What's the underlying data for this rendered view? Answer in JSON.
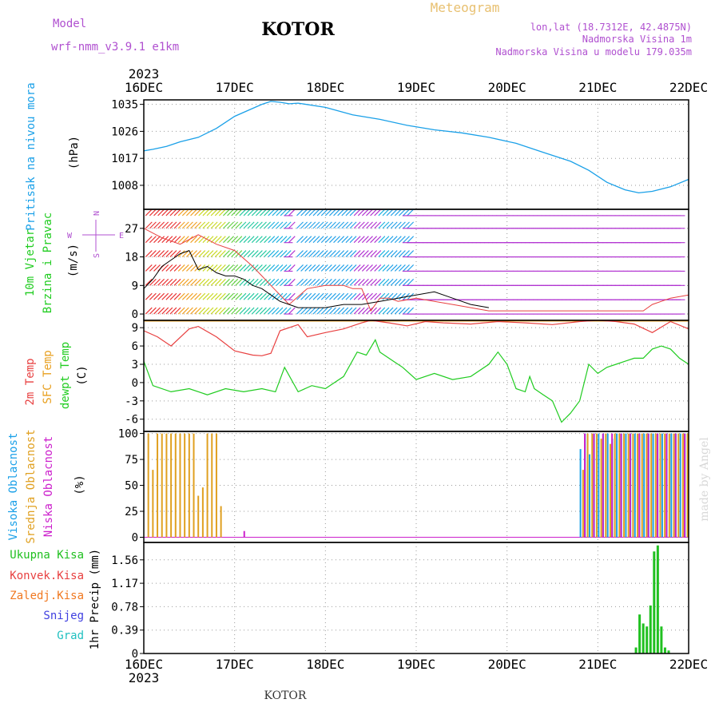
{
  "header": {
    "model_label": "Model",
    "model_name": "wrf-nmm_v3.9.1  e1km",
    "city": "KOTOR",
    "meteogram": "Meteogram",
    "lonlat": "lon,lat (18.7312E, 42.4875N)",
    "elev": "Nadmorska Visina 1m",
    "elev_model": "Nadmorska Visina u modelu 179.035m",
    "footer_city": "KOTOR",
    "watermark": "made by Angel"
  },
  "colors": {
    "pressure": "#1aa0e8",
    "temp": "#e84040",
    "sfc_temp": "#e8a020",
    "dewpt": "#20cc20",
    "high_cloud": "#1aa0e8",
    "mid_cloud": "#e0a020",
    "low_cloud": "#cc20cc",
    "precip_total": "#20c020",
    "precip_conv": "#e84040",
    "precip_frozen": "#f07820",
    "snow": "#4040e0",
    "grad": "#20c0c0",
    "wind_axis_label": "#b050d0"
  },
  "chart_data": [
    {
      "type": "line",
      "panel": "pressure",
      "ylabel_lines": [
        "Pritisak na nivou mora",
        "(hPa)"
      ],
      "ylim": [
        1000,
        1036.5
      ],
      "yticks": [
        1008,
        1017,
        1026,
        1035
      ],
      "x_start_year": "2023",
      "x_ticks": [
        "16DEC",
        "17DEC",
        "18DEC",
        "19DEC",
        "20DEC",
        "21DEC",
        "22DEC"
      ],
      "x_days": [
        0,
        6
      ],
      "grid": true,
      "series": [
        {
          "key": "pressure",
          "x": [
            0,
            0.1,
            0.25,
            0.4,
            0.6,
            0.8,
            1.0,
            1.15,
            1.3,
            1.4,
            1.5,
            1.6,
            1.7,
            2.0,
            2.3,
            2.6,
            2.9,
            3.2,
            3.5,
            3.8,
            4.1,
            4.4,
            4.7,
            4.9,
            5.1,
            5.3,
            5.45,
            5.6,
            5.8,
            6.0
          ],
          "values": [
            1019.5,
            1020,
            1021,
            1022.5,
            1024,
            1027,
            1031,
            1033,
            1035,
            1036,
            1035.7,
            1035.2,
            1035.4,
            1034,
            1031.5,
            1030,
            1028,
            1026.5,
            1025.5,
            1024,
            1022,
            1019,
            1016,
            1013,
            1009,
            1006.5,
            1005.5,
            1006,
            1007.5,
            1010
          ]
        }
      ]
    },
    {
      "type": "line",
      "panel": "wind",
      "ylabel_lines": [
        "10m Vjetar",
        "Brzina i Pravac",
        "(m/s)"
      ],
      "compass": [
        "N",
        "S",
        "W",
        "E"
      ],
      "ylim": [
        -2,
        33
      ],
      "yticks": [
        0,
        9,
        18,
        27
      ],
      "grid": true,
      "barb_rows": [
        0,
        4.5,
        9,
        13.5,
        18,
        22.5,
        27,
        31
      ],
      "series": [
        {
          "key": "speed",
          "color": "#000000",
          "x": [
            0,
            0.1,
            0.2,
            0.3,
            0.4,
            0.5,
            0.6,
            0.7,
            0.8,
            0.9,
            1.0,
            1.1,
            1.2,
            1.3,
            1.4,
            1.5,
            1.6,
            1.7,
            1.8,
            2.0,
            2.2,
            2.4,
            2.6,
            2.8,
            3.0,
            3.2,
            3.4,
            3.6,
            3.8
          ],
          "values": [
            8,
            11,
            15,
            17,
            19,
            20,
            14,
            15,
            13,
            12,
            12,
            11,
            9,
            8,
            6,
            4,
            3,
            2,
            2,
            2,
            3,
            3,
            4,
            5,
            6,
            7,
            5,
            3,
            2
          ]
        },
        {
          "key": "gust",
          "color": "#e84040",
          "x": [
            0,
            0.2,
            0.4,
            0.6,
            0.8,
            1.0,
            1.2,
            1.3,
            1.4,
            1.6,
            1.8,
            2.0,
            2.2,
            2.3,
            2.4,
            2.5,
            2.6,
            2.7,
            2.8,
            3.0,
            3.2,
            3.4,
            3.6,
            3.8,
            4.0,
            4.4,
            4.8,
            5.2,
            5.5,
            5.6,
            5.8,
            6.0
          ],
          "values": [
            27,
            24,
            22,
            25,
            22,
            20,
            15,
            12,
            9,
            3,
            8,
            9,
            9,
            8,
            8,
            1,
            5,
            5,
            4,
            5,
            4,
            3,
            2,
            1,
            1,
            1,
            1,
            1,
            1,
            3,
            5,
            6
          ]
        }
      ]
    },
    {
      "type": "line",
      "panel": "temperature",
      "ylabel_lines": [
        "2m Temp",
        "SFC Temp",
        "dewpt Temp",
        "(C)"
      ],
      "ylim": [
        -8,
        10.2
      ],
      "yticks": [
        -6,
        -3,
        0,
        3,
        6,
        9
      ],
      "grid": true,
      "series": [
        {
          "key": "temp2m",
          "x": [
            0,
            0.15,
            0.3,
            0.5,
            0.6,
            0.8,
            1.0,
            1.2,
            1.3,
            1.4,
            1.5,
            1.7,
            1.8,
            2.0,
            2.2,
            2.4,
            2.5,
            2.7,
            2.9,
            3.1,
            3.3,
            3.6,
            3.9,
            4.2,
            4.5,
            4.8,
            5.0,
            5.2,
            5.4,
            5.6,
            5.8,
            6.0
          ],
          "values": [
            8.5,
            7.5,
            6,
            8.8,
            9.2,
            7.5,
            5.2,
            4.5,
            4.4,
            4.8,
            8.5,
            9.5,
            7.5,
            8.2,
            8.8,
            9.8,
            10.2,
            9.8,
            9.3,
            10,
            9.8,
            9.6,
            10,
            9.8,
            9.5,
            10,
            10.2,
            10,
            9.6,
            8.2,
            10,
            8.8
          ]
        },
        {
          "key": "sfc",
          "x": [
            0,
            6
          ],
          "values": [
            10.1,
            10.1
          ]
        },
        {
          "key": "dewpt",
          "x": [
            0,
            0.1,
            0.3,
            0.5,
            0.7,
            0.9,
            1.1,
            1.3,
            1.45,
            1.55,
            1.7,
            1.85,
            2.0,
            2.2,
            2.35,
            2.45,
            2.55,
            2.6,
            2.75,
            2.85,
            3.0,
            3.2,
            3.4,
            3.6,
            3.8,
            3.9,
            4.0,
            4.1,
            4.2,
            4.25,
            4.3,
            4.4,
            4.5,
            4.6,
            4.7,
            4.8,
            4.9,
            5.0,
            5.1,
            5.2,
            5.3,
            5.4,
            5.5,
            5.6,
            5.7,
            5.8,
            5.9,
            6.0
          ],
          "values": [
            3.5,
            -0.5,
            -1.5,
            -1,
            -2,
            -1,
            -1.5,
            -1,
            -1.5,
            2.5,
            -1.5,
            -0.5,
            -1,
            1,
            5,
            4.5,
            7,
            5,
            3.5,
            2.5,
            0.5,
            1.5,
            0.5,
            1,
            3,
            5,
            3,
            -1,
            -1.5,
            1,
            -1,
            -2,
            -3,
            -6.5,
            -5,
            -3,
            3,
            1.5,
            2.5,
            3,
            3.5,
            4,
            4,
            5.5,
            6,
            5.5,
            4,
            3
          ]
        }
      ]
    },
    {
      "type": "bar",
      "panel": "cloud",
      "ylabel_lines": [
        "Visoka Oblacnost",
        "Srednja Oblacnost",
        "Niska Oblacnost",
        "(%)"
      ],
      "ylim": [
        -5,
        102
      ],
      "yticks": [
        0,
        25,
        50,
        75,
        100
      ],
      "grid": true,
      "mid_bars": {
        "x": [
          0.05,
          0.1,
          0.15,
          0.2,
          0.25,
          0.3,
          0.35,
          0.4,
          0.45,
          0.5,
          0.55,
          0.6,
          0.65,
          0.7,
          0.75,
          0.8,
          0.85
        ],
        "values": [
          100,
          65,
          100,
          100,
          100,
          100,
          100,
          100,
          100,
          100,
          100,
          40,
          48,
          100,
          100,
          100,
          30
        ]
      },
      "high_bars": {
        "x": [
          4.8,
          4.85,
          4.9,
          4.95,
          5.0,
          5.05,
          5.1,
          5.15,
          5.2,
          5.25,
          5.3,
          5.35,
          5.4,
          5.45,
          5.5,
          5.55,
          5.6,
          5.65,
          5.7,
          5.75,
          5.8,
          5.85,
          5.9,
          5.95
        ],
        "values": [
          85,
          100,
          80,
          100,
          100,
          100,
          100,
          95,
          100,
          100,
          100,
          100,
          100,
          100,
          100,
          100,
          100,
          100,
          100,
          100,
          100,
          100,
          100,
          100
        ]
      },
      "mid_bars_2": {
        "x": [
          4.82,
          4.87,
          4.92,
          4.97,
          5.02,
          5.07,
          5.12,
          5.17,
          5.22,
          5.27,
          5.32,
          5.37,
          5.42,
          5.47,
          5.52,
          5.57,
          5.62,
          5.67,
          5.72,
          5.77,
          5.82,
          5.87,
          5.92,
          5.97
        ],
        "values": [
          65,
          100,
          100,
          100,
          95,
          100,
          90,
          100,
          100,
          100,
          100,
          100,
          100,
          100,
          100,
          100,
          100,
          100,
          100,
          100,
          100,
          100,
          100,
          100
        ]
      },
      "low_bars": {
        "x": [
          1.08,
          4.83,
          4.93,
          5.03,
          5.13,
          5.23,
          5.33,
          5.43,
          5.53,
          5.63,
          5.73,
          5.83,
          5.93
        ],
        "values": [
          6,
          100,
          100,
          100,
          100,
          100,
          100,
          100,
          100,
          100,
          100,
          100,
          100
        ]
      }
    },
    {
      "type": "bar",
      "panel": "precip",
      "ylabel_lines": [
        "1hr Precip (mm)"
      ],
      "legend": [
        "Ukupna Kisa",
        "Konvek.Kisa",
        "Zaledj.Kisa",
        "Snijeg",
        "Grad"
      ],
      "ylim": [
        0,
        1.85
      ],
      "yticks": [
        0,
        0.39,
        0.78,
        1.17,
        1.56
      ],
      "ytick_labels": [
        "0",
        "0.39",
        "0.78",
        "1.17",
        "1.56"
      ],
      "grid": true,
      "x_end_year": "2023",
      "series": [
        {
          "key": "total",
          "x": [
            5.42,
            5.46,
            5.5,
            5.54,
            5.58,
            5.62,
            5.66,
            5.7,
            5.74,
            5.78
          ],
          "values": [
            0.1,
            0.65,
            0.5,
            0.45,
            0.8,
            1.7,
            1.8,
            0.45,
            0.1,
            0.05
          ]
        }
      ]
    }
  ]
}
